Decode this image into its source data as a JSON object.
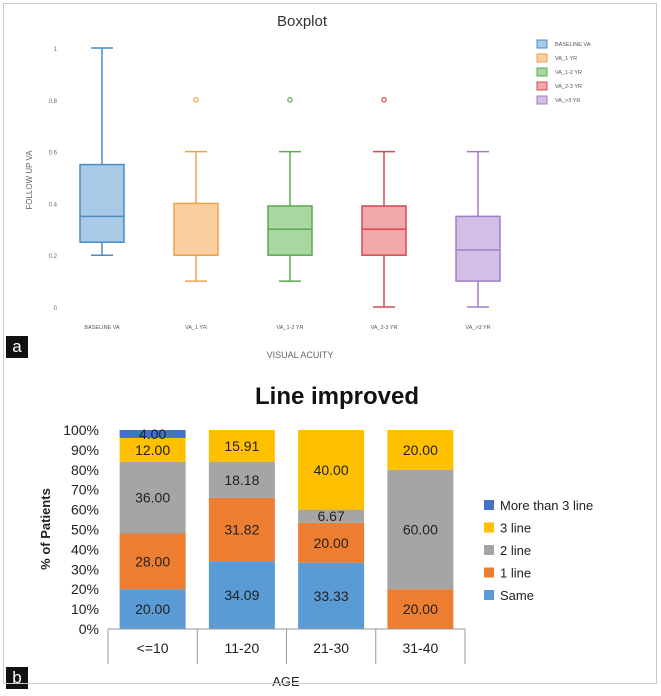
{
  "panels": [
    {
      "label": "a"
    },
    {
      "label": "b"
    }
  ],
  "chart_data": [
    {
      "type": "boxplot",
      "title": "Boxplot",
      "xlabel": "VISUAL ACUITY",
      "ylabel": "FOLLOW UP VA",
      "ylim": [
        0,
        1
      ],
      "yticks": [
        "0",
        "0.2",
        "0.4",
        "0.6",
        "0.8",
        "1"
      ],
      "legend_position": "top-right",
      "grid": false,
      "series": [
        {
          "name": "BASELINE VA",
          "color": "#4a8cc4",
          "fill": "#a9cae6",
          "min": 0.2,
          "q1": 0.25,
          "median": 0.35,
          "q3": 0.55,
          "max": 1.0,
          "outliers": []
        },
        {
          "name": "VA_1 YR",
          "color": "#f0a24a",
          "fill": "#f9cfa0",
          "min": 0.1,
          "q1": 0.2,
          "median": 0.2,
          "q3": 0.4,
          "max": 0.6,
          "outliers": [
            0.8
          ]
        },
        {
          "name": "VA_1-2 YR",
          "color": "#5aaa50",
          "fill": "#a8d7a0",
          "min": 0.1,
          "q1": 0.2,
          "median": 0.3,
          "q3": 0.39,
          "max": 0.6,
          "outliers": [
            0.8
          ]
        },
        {
          "name": "VA_2-3 YR",
          "color": "#d9484c",
          "fill": "#f0a8aa",
          "min": 0.0,
          "q1": 0.2,
          "median": 0.3,
          "q3": 0.39,
          "max": 0.6,
          "outliers": [
            0.8
          ]
        },
        {
          "name": "VA_>3 YR",
          "color": "#a37cc7",
          "fill": "#d3bee6",
          "min": 0.0,
          "q1": 0.1,
          "median": 0.22,
          "q3": 0.35,
          "max": 0.6,
          "outliers": []
        }
      ]
    },
    {
      "type": "bar",
      "stacked": true,
      "title": "Line improved",
      "xlabel": "AGE",
      "ylabel": "% of Patients",
      "ylim": [
        0,
        100
      ],
      "yticks": [
        "0%",
        "10%",
        "20%",
        "30%",
        "40%",
        "50%",
        "60%",
        "70%",
        "80%",
        "90%",
        "100%"
      ],
      "categories": [
        "<=10",
        "11-20",
        "21-30",
        "31-40"
      ],
      "legend_position": "right",
      "series": [
        {
          "name": "Same",
          "color": "#5b9bd5",
          "values": [
            20.0,
            34.09,
            33.33,
            0
          ],
          "labels": [
            "20.00",
            "34.09",
            "33.33",
            ""
          ]
        },
        {
          "name": "1 line",
          "color": "#ed7d31",
          "values": [
            28.0,
            31.82,
            20.0,
            20.0
          ],
          "labels": [
            "28.00",
            "31.82",
            "20.00",
            "20.00"
          ]
        },
        {
          "name": "2 line",
          "color": "#a5a5a5",
          "values": [
            36.0,
            18.18,
            6.67,
            60.0
          ],
          "labels": [
            "36.00",
            "18.18",
            "6.67",
            "60.00"
          ]
        },
        {
          "name": "3 line",
          "color": "#ffc000",
          "values": [
            12.0,
            15.91,
            40.0,
            20.0
          ],
          "labels": [
            "12.00",
            "15.91",
            "40.00",
            "20.00"
          ]
        },
        {
          "name": "More than 3 line",
          "color": "#4472c4",
          "values": [
            4.0,
            0,
            0,
            0
          ],
          "labels": [
            "4.00",
            "",
            "",
            ""
          ]
        }
      ]
    }
  ]
}
